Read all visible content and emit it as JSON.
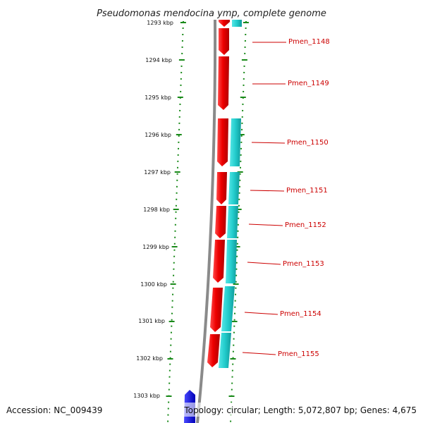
{
  "title": "Pseudomonas mendocina ymp, complete genome",
  "footer": {
    "accession": "Accession: NC_009439",
    "summary": "Topology: circular; Length: 5,072,807 bp; Genes: 4,675"
  },
  "colors": {
    "backbone": "#888888",
    "forward_cds": "#ee0000",
    "gene_band": "#22cccc",
    "reverse_cds": "#0000ee",
    "ticks": "#1a8a1a",
    "label": "#cc0000"
  },
  "ruler": {
    "unit": "kbp",
    "labels": [
      "1293 kbp",
      "1294 kbp",
      "1295 kbp",
      "1296 kbp",
      "1297 kbp",
      "1298 kbp",
      "1299 kbp",
      "1300 kbp",
      "1301 kbp",
      "1302 kbp",
      "1303 kbp"
    ]
  },
  "genes": [
    {
      "id": "Pmen_1148"
    },
    {
      "id": "Pmen_1149"
    },
    {
      "id": "Pmen_1150"
    },
    {
      "id": "Pmen_1151"
    },
    {
      "id": "Pmen_1152"
    },
    {
      "id": "Pmen_1153"
    },
    {
      "id": "Pmen_1154"
    },
    {
      "id": "Pmen_1155"
    }
  ]
}
